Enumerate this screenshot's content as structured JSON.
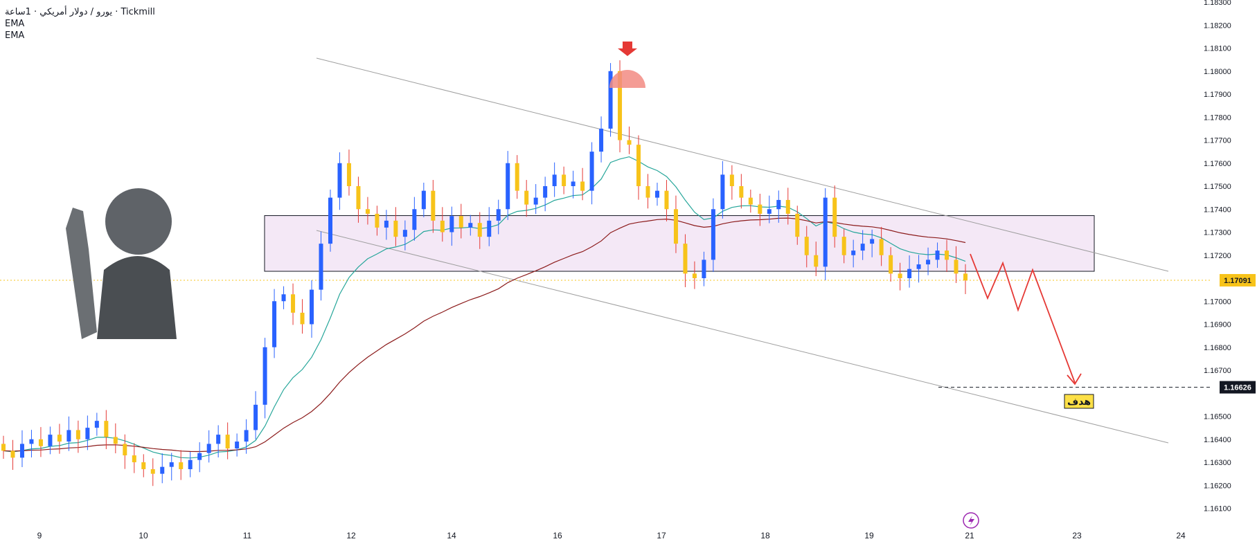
{
  "legend": {
    "symbol": "يورو / دولار أمريكي · 1ساعة · Tickmill",
    "ema1": "EMA",
    "ema2": "EMA"
  },
  "chart_data": {
    "type": "candlestick",
    "ylim": [
      1.1603,
      1.1832
    ],
    "yticks": [
      "1.18300",
      "1.18200",
      "1.18100",
      "1.18000",
      "1.17900",
      "1.17800",
      "1.17700",
      "1.17600",
      "1.17500",
      "1.17400",
      "1.17300",
      "1.17200",
      "1.17000",
      "1.16900",
      "1.16800",
      "1.16700",
      "1.16500",
      "1.16400",
      "1.16300",
      "1.16200",
      "1.16100"
    ],
    "xticks": [
      "9",
      "10",
      "11",
      "12",
      "14",
      "16",
      "17",
      "18",
      "19",
      "21",
      "23",
      "24"
    ],
    "last_price": 1.17091,
    "last_price_label": "1.17091",
    "target_price": 1.16626,
    "target_price_label": "1.16626",
    "target_text": "هدف",
    "zone": {
      "low": 1.1713,
      "high": 1.17372
    },
    "up_color": "#2962ff",
    "down_color": "#f7c31a",
    "ema_fast_color": "#26a69a",
    "ema_slow_color": "#8b1a1a",
    "projection_color": "#e53935",
    "closes": [
      1.1635,
      1.1632,
      1.1638,
      1.164,
      1.1637,
      1.1642,
      1.1639,
      1.1644,
      1.164,
      1.1645,
      1.1648,
      1.1641,
      1.1638,
      1.1633,
      1.163,
      1.1627,
      1.1625,
      1.1628,
      1.163,
      1.1627,
      1.1631,
      1.1634,
      1.1638,
      1.1642,
      1.1636,
      1.1639,
      1.1644,
      1.1655,
      1.168,
      1.17,
      1.1703,
      1.1695,
      1.169,
      1.1705,
      1.1725,
      1.1745,
      1.176,
      1.175,
      1.174,
      1.1738,
      1.1732,
      1.1735,
      1.1728,
      1.1731,
      1.174,
      1.1748,
      1.1735,
      1.173,
      1.1737,
      1.1732,
      1.1734,
      1.1728,
      1.1735,
      1.174,
      1.176,
      1.1748,
      1.1742,
      1.1745,
      1.175,
      1.1755,
      1.175,
      1.1752,
      1.1748,
      1.1765,
      1.1775,
      1.18,
      1.177,
      1.1768,
      1.175,
      1.1745,
      1.1748,
      1.174,
      1.1725,
      1.1712,
      1.171,
      1.1718,
      1.174,
      1.1755,
      1.175,
      1.1745,
      1.1742,
      1.1738,
      1.174,
      1.1744,
      1.1738,
      1.1728,
      1.172,
      1.1715,
      1.1745,
      1.1728,
      1.172,
      1.1722,
      1.1725,
      1.1727,
      1.172,
      1.1712,
      1.171,
      1.1714,
      1.1716,
      1.1718,
      1.1722,
      1.1718,
      1.1712,
      1.1709
    ]
  }
}
